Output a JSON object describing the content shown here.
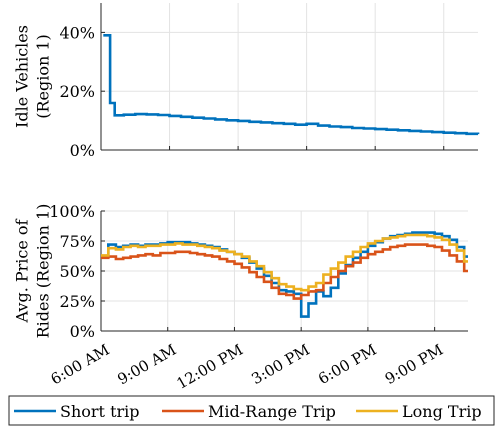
{
  "chart_data": [
    {
      "type": "line",
      "style": "stairs",
      "xlabel": "",
      "ylabel": "Idle Vehicles",
      "ylabel2": "(Region 1)",
      "xlim": [
        6,
        22.5
      ],
      "ylim": [
        0,
        50
      ],
      "yticks": [
        0,
        20,
        40
      ],
      "yticklabels": [
        "0%",
        "20%",
        "40%"
      ],
      "xtick_values": [
        6,
        9,
        12,
        15,
        18,
        21
      ],
      "show_xticklabels": false,
      "grid": true,
      "series": [
        {
          "name": "Short trip",
          "color": "#0072BD",
          "x": [
            6.1,
            6.4,
            6.6,
            7.0,
            7.5,
            8.0,
            8.5,
            9.0,
            9.5,
            10.0,
            10.5,
            11.0,
            11.5,
            12.0,
            12.5,
            13.0,
            13.5,
            14.0,
            14.5,
            15.0,
            15.5,
            16.0,
            16.5,
            17.0,
            17.5,
            18.0,
            18.5,
            19.0,
            19.5,
            20.0,
            20.5,
            21.0,
            21.5,
            22.0,
            22.5
          ],
          "values": [
            39.0,
            16.0,
            11.8,
            12.0,
            12.2,
            12.1,
            11.9,
            11.6,
            11.3,
            11.0,
            10.7,
            10.4,
            10.1,
            9.9,
            9.6,
            9.4,
            9.1,
            8.9,
            8.6,
            8.9,
            8.3,
            8.0,
            7.8,
            7.5,
            7.3,
            7.1,
            6.9,
            6.7,
            6.5,
            6.3,
            6.1,
            5.9,
            5.7,
            5.5,
            5.4
          ]
        }
      ]
    },
    {
      "type": "line",
      "style": "stairs",
      "xlabel": "",
      "ylabel": "Avg. Price of",
      "ylabel2": "Rides (Region 1)",
      "xlim": [
        6,
        22.5
      ],
      "ylim": [
        0,
        100
      ],
      "yticks": [
        0,
        25,
        50,
        75,
        100
      ],
      "yticklabels": [
        "0%",
        "25%",
        "50%",
        "75%",
        "100%"
      ],
      "xtick_values": [
        6,
        9,
        12,
        15,
        18,
        21
      ],
      "xticklabels": [
        "6:00 AM",
        "9:00 AM",
        "12:00 PM",
        "3:00 PM",
        "6:00 PM",
        "9:00 PM"
      ],
      "grid": true,
      "legend_position": "bottom",
      "series": [
        {
          "name": "Short trip",
          "color": "#0072BD",
          "x": [
            6.0,
            6.33,
            6.67,
            7.0,
            7.33,
            7.67,
            8.0,
            8.33,
            8.67,
            9.0,
            9.33,
            9.67,
            10.0,
            10.33,
            10.67,
            11.0,
            11.33,
            11.67,
            12.0,
            12.33,
            12.67,
            13.0,
            13.33,
            13.67,
            14.0,
            14.33,
            14.67,
            15.0,
            15.33,
            15.67,
            16.0,
            16.33,
            16.67,
            17.0,
            17.33,
            17.67,
            18.0,
            18.33,
            18.67,
            19.0,
            19.33,
            19.67,
            20.0,
            20.33,
            20.67,
            21.0,
            21.33,
            21.67,
            22.0,
            22.33
          ],
          "values": [
            62,
            72,
            70,
            71,
            72,
            71,
            72,
            72,
            73,
            74,
            74,
            74,
            73,
            72,
            71,
            70,
            68,
            66,
            64,
            61,
            57,
            52,
            46,
            40,
            34,
            33,
            31,
            12,
            23,
            33,
            29,
            36,
            48,
            55,
            61,
            66,
            71,
            74,
            77,
            79,
            80,
            81,
            82,
            82,
            82,
            81,
            79,
            76,
            70,
            62
          ]
        },
        {
          "name": "Mid-Range Trip",
          "color": "#D95319",
          "x": [
            6.0,
            6.33,
            6.67,
            7.0,
            7.33,
            7.67,
            8.0,
            8.33,
            8.67,
            9.0,
            9.33,
            9.67,
            10.0,
            10.33,
            10.67,
            11.0,
            11.33,
            11.67,
            12.0,
            12.33,
            12.67,
            13.0,
            13.33,
            13.67,
            14.0,
            14.33,
            14.67,
            15.0,
            15.33,
            15.67,
            16.0,
            16.33,
            16.67,
            17.0,
            17.33,
            17.67,
            18.0,
            18.33,
            18.67,
            19.0,
            19.33,
            19.67,
            20.0,
            20.33,
            20.67,
            21.0,
            21.33,
            21.67,
            22.0,
            22.33
          ],
          "values": [
            61,
            62,
            60,
            61,
            62,
            63,
            64,
            63,
            65,
            65,
            66,
            66,
            65,
            64,
            63,
            62,
            60,
            58,
            56,
            53,
            49,
            45,
            41,
            36,
            31,
            30,
            27,
            30,
            33,
            34,
            40,
            45,
            50,
            54,
            57,
            61,
            64,
            66,
            68,
            70,
            71,
            72,
            72,
            72,
            71,
            70,
            67,
            63,
            58,
            50
          ]
        },
        {
          "name": "Long Trip",
          "color": "#EDB120",
          "x": [
            6.0,
            6.33,
            6.67,
            7.0,
            7.33,
            7.67,
            8.0,
            8.33,
            8.67,
            9.0,
            9.33,
            9.67,
            10.0,
            10.33,
            10.67,
            11.0,
            11.33,
            11.67,
            12.0,
            12.33,
            12.67,
            13.0,
            13.33,
            13.67,
            14.0,
            14.33,
            14.67,
            15.0,
            15.33,
            15.67,
            16.0,
            16.33,
            16.67,
            17.0,
            17.33,
            17.67,
            18.0,
            18.33,
            18.67,
            19.0,
            19.33,
            19.67,
            20.0,
            20.33,
            20.67,
            21.0,
            21.33,
            21.67,
            22.0,
            22.33
          ],
          "values": [
            63,
            69,
            68,
            70,
            71,
            70,
            71,
            71,
            72,
            72,
            73,
            72,
            72,
            71,
            70,
            69,
            67,
            66,
            64,
            62,
            58,
            54,
            49,
            44,
            39,
            37,
            35,
            34,
            37,
            40,
            47,
            52,
            57,
            62,
            66,
            70,
            73,
            75,
            77,
            78,
            79,
            80,
            80,
            80,
            79,
            78,
            76,
            72,
            67,
            58
          ]
        }
      ]
    }
  ]
}
